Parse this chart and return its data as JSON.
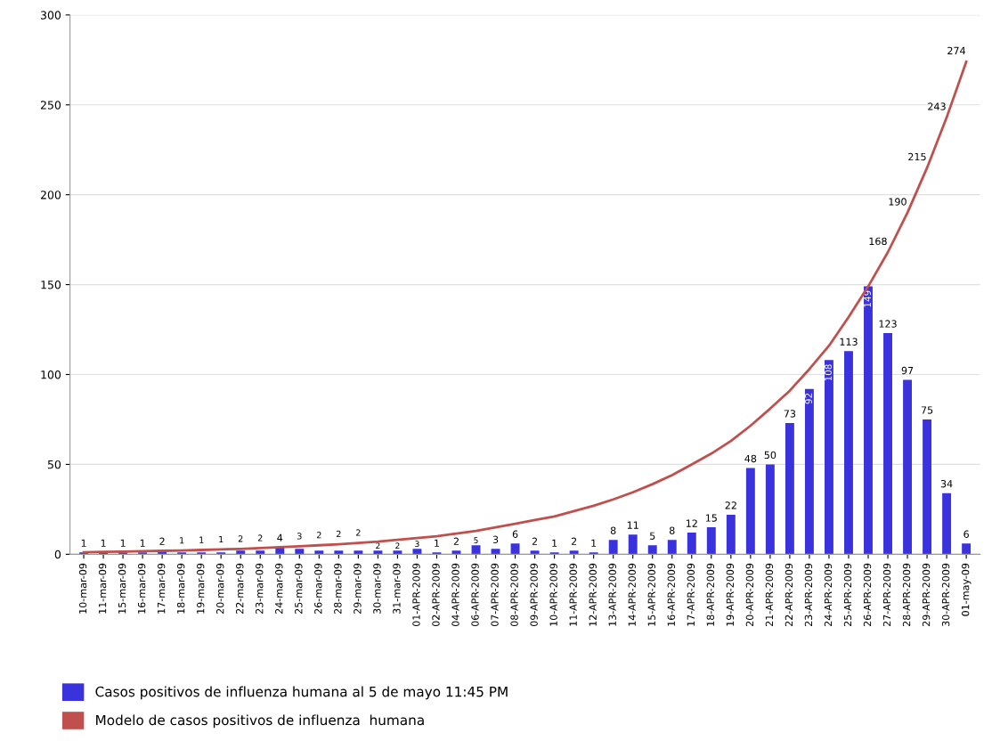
{
  "chart_data": {
    "type": "bar",
    "categories": [
      "10-mar-09",
      "11-mar-09",
      "15-mar-09",
      "16-mar-09",
      "17-mar-09",
      "18-mar-09",
      "19-mar-09",
      "20-mar-09",
      "22-mar-09",
      "23-mar-09",
      "24-mar-09",
      "25-mar-09",
      "26-mar-09",
      "28-mar-09",
      "29-mar-09",
      "30-mar-09",
      "31-mar-09",
      "01-APR-2009",
      "02-APR-2009",
      "04-APR-2009",
      "06-APR-2009",
      "07-APR-2009",
      "08-APR-2009",
      "09-APR-2009",
      "10-APR-2009",
      "11-APR-2009",
      "12-APR-2009",
      "13-APR-2009",
      "14-APR-2009",
      "15-APR-2009",
      "16-APR-2009",
      "17-APR-2009",
      "18-APR-2009",
      "19-APR-2009",
      "20-APR-2009",
      "21-APR-2009",
      "22-APR-2009",
      "23-APR-2009",
      "24-APR-2009",
      "25-APR-2009",
      "26-APR-2009",
      "27-APR-2009",
      "28-APR-2009",
      "29-APR-2009",
      "30-APR-2009",
      "01-may-09"
    ],
    "series": [
      {
        "name": "Casos positivos de influenza humana al 5 de mayo 11:45 PM",
        "color": "#3a32dc",
        "data_labels": true,
        "values": [
          1,
          1,
          1,
          1,
          2,
          1,
          1,
          1,
          2,
          2,
          4,
          3,
          2,
          2,
          2,
          2,
          2,
          3,
          1,
          2,
          5,
          3,
          6,
          2,
          1,
          2,
          1,
          8,
          11,
          5,
          8,
          12,
          15,
          22,
          48,
          50,
          73,
          92,
          108,
          113,
          149,
          123,
          97,
          75,
          34,
          6
        ]
      },
      {
        "name": "Modelo de casos positivos de influenza  humana",
        "type": "line",
        "color": "#c0504d",
        "values": [
          1.1,
          1.3,
          1.5,
          1.7,
          1.9,
          2.1,
          2.4,
          2.7,
          3,
          3.4,
          3.9,
          4.4,
          5,
          5.6,
          6.3,
          7,
          8,
          9,
          10,
          11.5,
          13,
          15,
          17,
          19,
          21,
          24,
          27,
          30.5,
          34.5,
          39,
          44,
          50,
          56,
          63,
          71.5,
          81,
          91,
          103,
          116,
          132,
          149,
          168,
          190,
          215,
          243,
          274
        ],
        "value_labels": [
          null,
          null,
          null,
          null,
          null,
          null,
          null,
          null,
          null,
          null,
          null,
          null,
          null,
          null,
          null,
          null,
          null,
          null,
          null,
          null,
          null,
          null,
          null,
          null,
          null,
          null,
          null,
          null,
          null,
          null,
          null,
          null,
          null,
          null,
          null,
          null,
          null,
          null,
          null,
          null,
          null,
          "168",
          "190",
          "215",
          "243",
          "274"
        ]
      }
    ],
    "ylim": [
      0,
      300
    ],
    "yticks": [
      0,
      50,
      100,
      150,
      200,
      250,
      300
    ],
    "grid": "y",
    "legend": "bottom left"
  }
}
